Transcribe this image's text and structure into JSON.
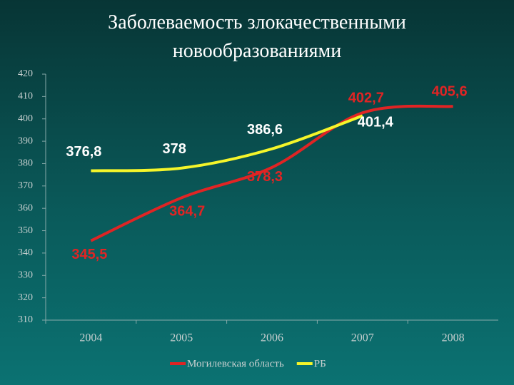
{
  "chart_data": {
    "type": "line",
    "title": "Заболеваемость злокачественными новообразованиями",
    "categories": [
      "2004",
      "2005",
      "2006",
      "2007",
      "2008"
    ],
    "series": [
      {
        "name": "Могилевская область",
        "color": "#e02424",
        "label_color": "#e02424",
        "values": [
          345.5,
          364.7,
          378.3,
          402.7,
          405.6
        ],
        "value_labels": [
          "345,5",
          "364,7",
          "378,3",
          "402,7",
          "405,6"
        ]
      },
      {
        "name": "РБ",
        "color": "#f5f52a",
        "label_color": "#ffffff",
        "values": [
          376.8,
          378,
          386.6,
          401.4,
          null
        ],
        "value_labels": [
          "376,8",
          "378",
          "386,6",
          "401,4",
          null
        ]
      }
    ],
    "ylim": [
      310,
      420
    ],
    "yticks": [
      310,
      320,
      330,
      340,
      350,
      360,
      370,
      380,
      390,
      400,
      410,
      420
    ],
    "grid": false,
    "legend": "bottom"
  }
}
